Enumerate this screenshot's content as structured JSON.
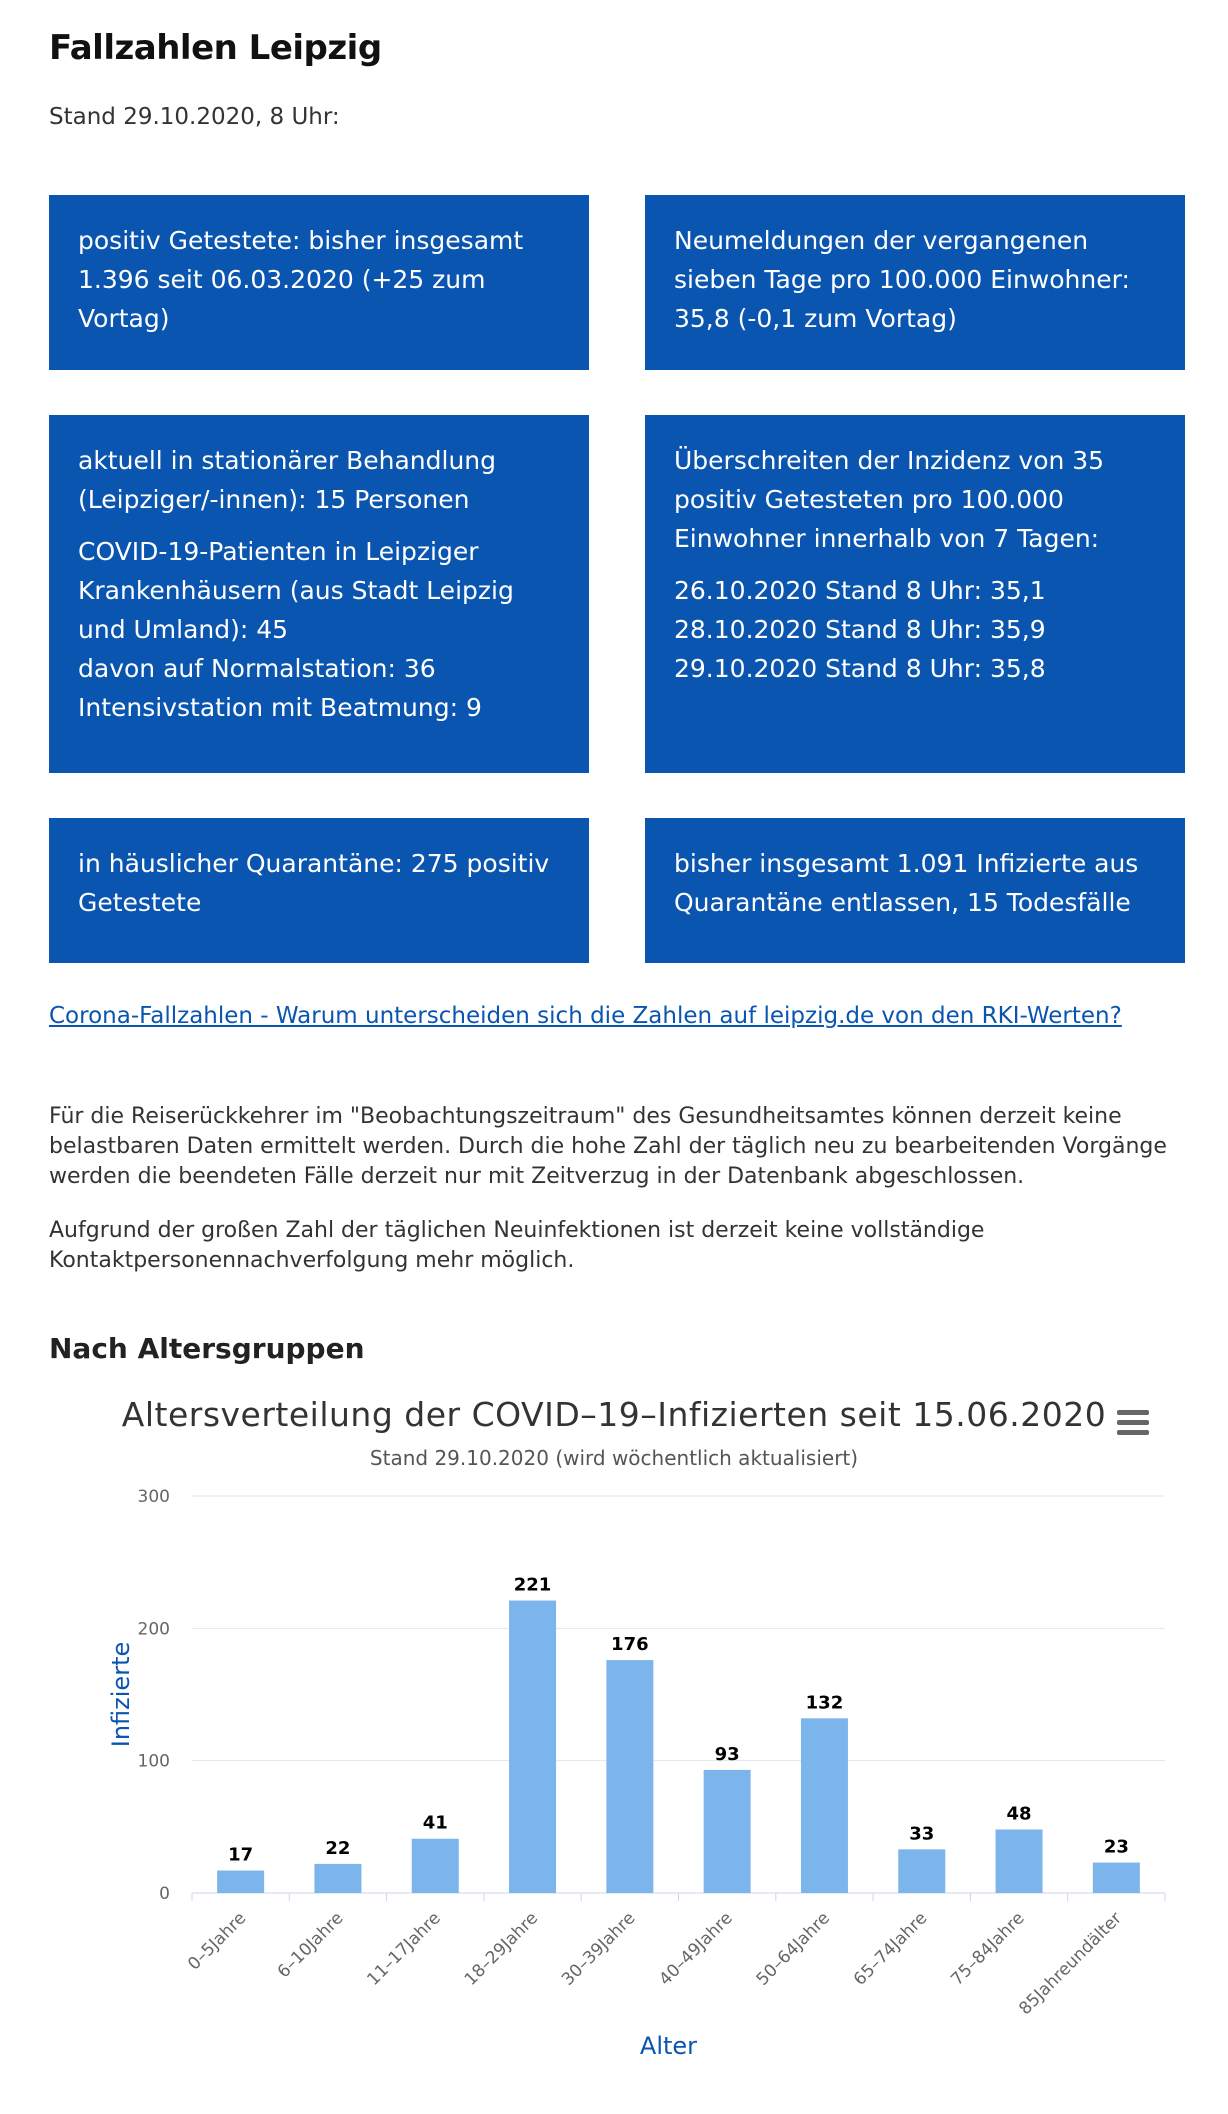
{
  "page": {
    "title": "Fallzahlen Leipzig",
    "stand": "Stand 29.10.2020, 8 Uhr:"
  },
  "boxes": [
    {
      "paragraphs": [
        "positiv Getestete: bisher insgesamt 1.396 seit 06.03.2020 (+25 zum Vortag)"
      ]
    },
    {
      "paragraphs": [
        "Neumeldungen der vergangenen sieben Tage pro 100.000 Einwohner: 35,8 (-0,1 zum Vortag)"
      ]
    },
    {
      "paragraphs": [
        "aktuell in stationärer Behandlung (Leipziger/-innen): 15 Personen",
        "COVID-19-Patienten in Leipziger Krankenhäusern (aus Stadt Leipzig und Umland): 45\ndavon auf Normalstation: 36\nIntensivstation mit Beatmung: 9"
      ]
    },
    {
      "paragraphs": [
        "Überschreiten der Inzidenz von 35 positiv Getesteten pro 100.000 Einwohner innerhalb von 7 Tagen:",
        "26.10.2020 Stand 8 Uhr: 35,1\n28.10.2020 Stand 8 Uhr: 35,9\n29.10.2020 Stand 8 Uhr: 35,8"
      ]
    },
    {
      "paragraphs": [
        "in häuslicher Quarantäne: 275 positiv Getestete"
      ]
    },
    {
      "paragraphs": [
        "bisher insgesamt 1.091 Infizierte aus Quarantäne entlassen, 15 Todesfälle"
      ]
    }
  ],
  "link": {
    "label": "Corona-Fallzahlen - Warum unterscheiden sich die Zahlen auf leipzig.de von den RKI-Werten?"
  },
  "paragraphs": [
    "Für die Reiserückkehrer im \"Beobachtungszeitraum\" des Gesundheitsamtes können derzeit keine belastbaren Daten ermittelt werden. Durch die hohe Zahl der täglich neu zu bearbeitenden Vorgänge werden die beendeten Fälle derzeit nur mit Zeitverzug in der Datenbank abgeschlossen.",
    "Aufgrund der großen Zahl der täglichen Neuinfektionen ist derzeit keine vollständige Kontaktpersonennachverfolgung mehr möglich."
  ],
  "section_heading": "Nach Altersgruppen",
  "menu_icon": "hamburger-menu-icon",
  "colors": {
    "box": "#0a55b0",
    "bar": "#7cb5ec",
    "axis_title": "#0a55b0"
  },
  "chart_data": {
    "type": "bar",
    "title": "Altersverteilung der COVID–19–Infizierten seit 15.06.2020",
    "subtitle": "Stand 29.10.2020 (wird wöchentlich aktualisiert)",
    "xlabel": "Alter",
    "ylabel": "Infizierte",
    "categories": [
      "0–5Jahre",
      "6–10Jahre",
      "11–17Jahre",
      "18–29Jahre",
      "30–39Jahre",
      "40–49Jahre",
      "50–64Jahre",
      "65–74Jahre",
      "75–84Jahre",
      "85Jahreundälter"
    ],
    "values": [
      17,
      22,
      41,
      221,
      176,
      93,
      132,
      33,
      48,
      23
    ],
    "ylim": [
      0,
      300
    ],
    "yticks": [
      0,
      100,
      200,
      300
    ],
    "grid": true,
    "data_labels": true
  }
}
